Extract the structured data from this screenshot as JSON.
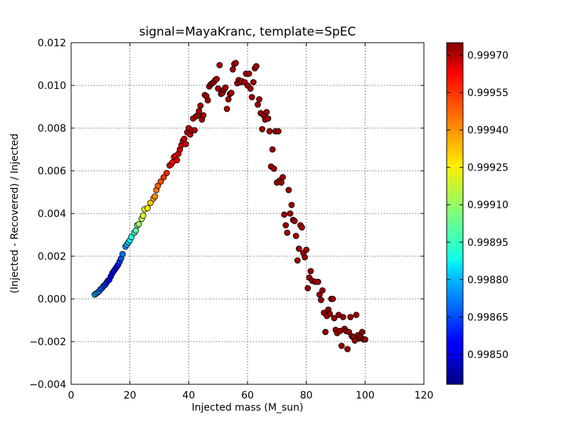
{
  "chart_data": {
    "type": "scatter",
    "title": "signal=MayaKranc, template=SpEC",
    "xlabel": "Injected mass (M_sun)",
    "ylabel": "(Injected - Recovered) / Injected",
    "xlim": [
      0,
      120
    ],
    "ylim": [
      -0.004,
      0.012
    ],
    "xticks": [
      "0",
      "20",
      "40",
      "60",
      "80",
      "100",
      "120"
    ],
    "yticks": [
      "−0.004",
      "−0.002",
      "0.000",
      "0.002",
      "0.004",
      "0.006",
      "0.008",
      "0.010",
      "0.012"
    ],
    "grid": true,
    "colorbar": {
      "colormap": "jet",
      "range": [
        0.99838,
        0.99975
      ],
      "ticks": [
        0.9985,
        0.99865,
        0.9988,
        0.99895,
        0.9991,
        0.99925,
        0.9994,
        0.99955,
        0.9997
      ],
      "tick_labels": [
        "0.99850",
        "0.99865",
        "0.99880",
        "0.99895",
        "0.99910",
        "0.99925",
        "0.99940",
        "0.99955",
        "0.99970"
      ]
    },
    "points_xy": [
      [
        8.0,
        0.0002
      ],
      [
        8.5,
        0.00025
      ],
      [
        9.0,
        0.0003
      ],
      [
        9.5,
        0.00035
      ],
      [
        10.0,
        0.00045
      ],
      [
        10.5,
        0.0005
      ],
      [
        11.0,
        0.0006
      ],
      [
        11.5,
        0.00065
      ],
      [
        12.0,
        0.00075
      ],
      [
        12.5,
        0.00085
      ],
      [
        13.0,
        0.0009
      ],
      [
        13.5,
        0.00105
      ],
      [
        14.0,
        0.0012
      ],
      [
        14.5,
        0.0013
      ],
      [
        15.0,
        0.0014
      ],
      [
        15.5,
        0.0015
      ],
      [
        16.0,
        0.0016
      ],
      [
        16.5,
        0.00175
      ],
      [
        17.0,
        0.0019
      ],
      [
        17.5,
        0.0021
      ],
      [
        18.5,
        0.00245
      ],
      [
        19.0,
        0.00255
      ],
      [
        19.5,
        0.00265
      ],
      [
        20.0,
        0.00275
      ],
      [
        20.5,
        0.0029
      ],
      [
        21.5,
        0.0031
      ],
      [
        22.0,
        0.0032
      ],
      [
        22.5,
        0.00345
      ],
      [
        23.0,
        0.0035
      ],
      [
        24.0,
        0.00375
      ],
      [
        24.5,
        0.0039
      ],
      [
        25.0,
        0.0042
      ],
      [
        26.0,
        0.00425
      ],
      [
        27.0,
        0.0045
      ],
      [
        28.0,
        0.0047
      ],
      [
        28.5,
        0.0048
      ],
      [
        29.0,
        0.0051
      ],
      [
        29.5,
        0.0053
      ],
      [
        30.5,
        0.0055
      ],
      [
        31.5,
        0.0057
      ],
      [
        32.5,
        0.0059
      ],
      [
        33.5,
        0.00625
      ],
      [
        34.0,
        0.0063
      ],
      [
        34.5,
        0.0064
      ],
      [
        35.0,
        0.00665
      ],
      [
        35.5,
        0.0067
      ],
      [
        36.0,
        0.0065
      ],
      [
        36.5,
        0.0068
      ],
      [
        37.0,
        0.007
      ],
      [
        37.5,
        0.0072
      ],
      [
        38.0,
        0.0074
      ],
      [
        38.5,
        0.0075
      ],
      [
        39.0,
        0.00725
      ],
      [
        39.5,
        0.0078
      ],
      [
        40.0,
        0.008
      ],
      [
        40.5,
        0.0077
      ],
      [
        41.0,
        0.0079
      ],
      [
        41.5,
        0.00845
      ],
      [
        42.0,
        0.0079
      ],
      [
        42.5,
        0.00855
      ],
      [
        43.0,
        0.0086
      ],
      [
        43.5,
        0.0088
      ],
      [
        44.0,
        0.00905
      ],
      [
        44.5,
        0.0084
      ],
      [
        45.0,
        0.0086
      ],
      [
        45.5,
        0.00955
      ],
      [
        46.0,
        0.0095
      ],
      [
        46.5,
        0.0093
      ],
      [
        47.0,
        0.00995
      ],
      [
        47.5,
        0.01005
      ],
      [
        48.0,
        0.0101
      ],
      [
        48.5,
        0.01015
      ],
      [
        49.0,
        0.01025
      ],
      [
        49.5,
        0.0103
      ],
      [
        50.0,
        0.00985
      ],
      [
        50.5,
        0.01095
      ],
      [
        51.0,
        0.0096
      ],
      [
        51.5,
        0.00965
      ],
      [
        52.0,
        0.0098
      ],
      [
        52.5,
        0.0099
      ],
      [
        53.0,
        0.0089
      ],
      [
        53.5,
        0.00935
      ],
      [
        54.0,
        0.0096
      ],
      [
        54.5,
        0.00965
      ],
      [
        55.0,
        0.01075
      ],
      [
        55.5,
        0.011
      ],
      [
        56.0,
        0.01105
      ],
      [
        56.5,
        0.0101
      ],
      [
        57.0,
        0.01025
      ],
      [
        57.5,
        0.01015
      ],
      [
        58.0,
        0.0102
      ],
      [
        59.0,
        0.01015
      ],
      [
        59.5,
        0.01055
      ],
      [
        60.0,
        0.01
      ],
      [
        60.5,
        0.01055
      ],
      [
        61.0,
        0.00985
      ],
      [
        61.5,
        0.00945
      ],
      [
        62.0,
        0.01015
      ],
      [
        62.5,
        0.0108
      ],
      [
        63.0,
        0.0109
      ],
      [
        63.5,
        0.0091
      ],
      [
        64.0,
        0.00935
      ],
      [
        64.5,
        0.0087
      ],
      [
        65.0,
        0.00795
      ],
      [
        65.5,
        0.0086
      ],
      [
        66.0,
        0.0084
      ],
      [
        66.5,
        0.00875
      ],
      [
        67.0,
        0.00845
      ],
      [
        67.5,
        0.00785
      ],
      [
        68.0,
        0.0062
      ],
      [
        68.5,
        0.007
      ],
      [
        69.0,
        0.0061
      ],
      [
        69.5,
        0.00785
      ],
      [
        70.0,
        0.00545
      ],
      [
        70.5,
        0.00785
      ],
      [
        71.0,
        0.00555
      ],
      [
        71.5,
        0.00545
      ],
      [
        72.0,
        0.0057
      ],
      [
        72.5,
        0.00395
      ],
      [
        73.0,
        0.00345
      ],
      [
        73.5,
        0.0031
      ],
      [
        74.0,
        0.0051
      ],
      [
        74.5,
        0.004
      ],
      [
        75.0,
        0.0044
      ],
      [
        75.5,
        0.0037
      ],
      [
        76.0,
        0.00365
      ],
      [
        76.5,
        0.00295
      ],
      [
        77.0,
        0.0018
      ],
      [
        77.5,
        0.00235
      ],
      [
        78.0,
        0.00345
      ],
      [
        78.5,
        0.00335
      ],
      [
        79.0,
        0.00215
      ],
      [
        79.5,
        0.00195
      ],
      [
        80.0,
        0.0023
      ],
      [
        80.5,
        0.0005
      ],
      [
        81.0,
        0.001
      ],
      [
        81.5,
        0.0013
      ],
      [
        82.0,
        0.00085
      ],
      [
        83.0,
        0.0008
      ],
      [
        84.0,
        0.0008
      ],
      [
        84.5,
        0.0002
      ],
      [
        85.0,
        -5e-05
      ],
      [
        85.5,
        0.0004
      ],
      [
        86.0,
        -0.00065
      ],
      [
        86.5,
        -0.00155
      ],
      [
        87.0,
        -0.0008
      ],
      [
        87.5,
        -0.0005
      ],
      [
        88.0,
        -0.0007
      ],
      [
        88.5,
        0.0
      ],
      [
        89.0,
        0.0
      ],
      [
        89.5,
        -0.0009
      ],
      [
        90.0,
        -0.00145
      ],
      [
        90.5,
        -0.0016
      ],
      [
        91.0,
        -0.00075
      ],
      [
        91.5,
        -0.0015
      ],
      [
        92.0,
        -0.0022
      ],
      [
        92.5,
        -0.00085
      ],
      [
        93.0,
        -0.0014
      ],
      [
        93.5,
        -0.0015
      ],
      [
        94.0,
        -0.00235
      ],
      [
        94.5,
        -0.00155
      ],
      [
        95.0,
        -0.00085
      ],
      [
        95.5,
        -0.00175
      ],
      [
        96.0,
        -0.0018
      ],
      [
        96.5,
        -0.00195
      ],
      [
        97.0,
        -0.00075
      ],
      [
        97.5,
        -0.0017
      ],
      [
        98.0,
        -0.00185
      ],
      [
        98.5,
        -0.0018
      ],
      [
        99.0,
        -0.00155
      ],
      [
        99.5,
        -0.0019
      ],
      [
        100.0,
        -0.0019
      ]
    ],
    "point_values": [
      0.9988,
      0.99878,
      0.99875,
      0.99872,
      0.9987,
      0.99867,
      0.99865,
      0.99862,
      0.9986,
      0.99858,
      0.99856,
      0.99855,
      0.99854,
      0.99853,
      0.99854,
      0.99856,
      0.99858,
      0.99862,
      0.99866,
      0.9987,
      0.99876,
      0.9988,
      0.99884,
      0.99888,
      0.99893,
      0.99897,
      0.99902,
      0.99906,
      0.9991,
      0.99914,
      0.99918,
      0.99923,
      0.99927,
      0.99931,
      0.99935,
      0.99939,
      0.99942,
      0.99945,
      0.99948,
      0.99951,
      0.99953,
      0.99955,
      0.99957,
      0.99959,
      0.9996,
      0.99961,
      0.99962,
      0.99963,
      0.99964,
      0.99965,
      0.99965,
      0.99966,
      0.99966,
      0.99967,
      0.99967,
      0.99968,
      0.99968,
      0.99968,
      0.99969,
      0.99969,
      0.99969,
      0.99969,
      0.99969,
      0.9997,
      0.9997,
      0.9997,
      0.9997,
      0.9997,
      0.9997,
      0.9997,
      0.9997,
      0.9997,
      0.9997,
      0.9997,
      0.9997,
      0.9997,
      0.9997,
      0.9997,
      0.9997,
      0.9997,
      0.9997,
      0.9997,
      0.9997,
      0.9997,
      0.9997,
      0.9997,
      0.9997,
      0.9997,
      0.9997,
      0.9997,
      0.9997,
      0.9997,
      0.9997,
      0.9997,
      0.9997,
      0.9997,
      0.9997,
      0.99971,
      0.99971,
      0.99971,
      0.99971,
      0.99971,
      0.99971,
      0.99971,
      0.99971,
      0.99971,
      0.99971,
      0.99971,
      0.99971,
      0.99971,
      0.99971,
      0.99971,
      0.99971,
      0.99971,
      0.99971,
      0.99971,
      0.99971,
      0.99971,
      0.99971,
      0.99971,
      0.99971,
      0.99971,
      0.99971,
      0.99971,
      0.99971,
      0.99971,
      0.99971,
      0.99971,
      0.99971,
      0.99971,
      0.99971,
      0.99971,
      0.99971,
      0.99971,
      0.99971,
      0.99971,
      0.99971,
      0.99971,
      0.99972,
      0.99972,
      0.99972,
      0.99972,
      0.99972,
      0.99972,
      0.99972,
      0.99972,
      0.99972,
      0.99972,
      0.99972,
      0.99972,
      0.99972,
      0.99972,
      0.99972,
      0.99972,
      0.99972,
      0.99972,
      0.99972,
      0.99972,
      0.99972,
      0.99972,
      0.99972,
      0.99972,
      0.99972,
      0.99972,
      0.99972,
      0.99972,
      0.99972,
      0.99972,
      0.99973,
      0.99973,
      0.99973,
      0.99973
    ]
  }
}
